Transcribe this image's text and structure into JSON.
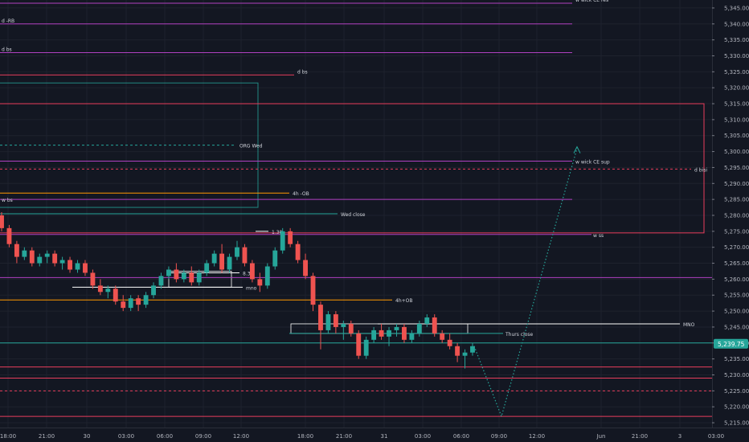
{
  "chart_data": {
    "type": "candlestick",
    "y_axis": {
      "ticks": [
        "5,345.00",
        "5,340.00",
        "5,335.00",
        "5,330.00",
        "5,325.00",
        "5,320.00",
        "5,315.00",
        "5,310.00",
        "5,305.00",
        "5,300.00",
        "5,295.00",
        "5,290.00",
        "5,285.00",
        "5,280.00",
        "5,275.00",
        "5,270.00",
        "5,265.00",
        "5,260.00",
        "5,255.00",
        "5,250.00",
        "5,245.00",
        "5,240.00",
        "5,235.00",
        "5,230.00",
        "5,225.00",
        "5,220.00",
        "5,215.00"
      ],
      "tick_values": [
        5345,
        5340,
        5335,
        5330,
        5325,
        5320,
        5315,
        5310,
        5305,
        5300,
        5295,
        5290,
        5285,
        5280,
        5275,
        5270,
        5265,
        5260,
        5255,
        5250,
        5245,
        5240,
        5235,
        5230,
        5225,
        5220,
        5215
      ],
      "range": [
        5213.5,
        5347.5
      ],
      "last_price_label": "5,239.75",
      "last_price": 5239.75,
      "last_price_color": "#26a69a"
    },
    "x_axis": {
      "labels": [
        "18:00",
        "21:00",
        "30",
        "03:00",
        "06:00",
        "09:00",
        "12:00",
        "18:00",
        "21:00",
        "31",
        "03:00",
        "06:00",
        "09:00",
        "12:00",
        "Jun",
        "21:00",
        "3",
        "03:00"
      ]
    },
    "levels": [
      {
        "label": "w wick CE res",
        "price": 5346.5,
        "color": "#b040c0",
        "style": "solid"
      },
      {
        "label": "d -RB",
        "price": 5340.0,
        "color": "#b040c0",
        "style": "solid"
      },
      {
        "label": "d bs",
        "price": 5331.0,
        "color": "#b040c0",
        "style": "solid"
      },
      {
        "label": "d bs",
        "price": 5324.0,
        "color": "#e83e5c",
        "style": "solid"
      },
      {
        "label": "ORG Wed",
        "price": 5302.0,
        "color": "#26a69a",
        "style": "dashed"
      },
      {
        "label": "w wick CE sup",
        "price": 5297.0,
        "color": "#b040c0",
        "style": "solid"
      },
      {
        "label": "d bisi",
        "price": 5294.5,
        "color": "#e83e5c",
        "style": "dashed"
      },
      {
        "label": "4h -OB",
        "price": 5287.0,
        "color": "#ff9800",
        "style": "solid"
      },
      {
        "label": "w bs",
        "price": 5285.0,
        "color": "#b040c0",
        "style": "solid"
      },
      {
        "label": "Wed close",
        "price": 5280.5,
        "color": "#26a69a",
        "style": "solid"
      },
      {
        "label": "1.30",
        "price": 5275.0,
        "color": "#ffffff",
        "style": "solid"
      },
      {
        "label": "w ss",
        "price": 5274.0,
        "color": "#b040c0",
        "style": "solid"
      },
      {
        "label": "8.30",
        "price": 5262.0,
        "color": "#ffffff",
        "style": "solid"
      },
      {
        "label": "",
        "price": 5260.5,
        "color": "#b040c0",
        "style": "solid"
      },
      {
        "label": "mno",
        "price": 5257.5,
        "color": "#ffffff",
        "style": "solid"
      },
      {
        "label": "4h+OB",
        "price": 5253.5,
        "color": "#ff9800",
        "style": "solid"
      },
      {
        "label": "MNO",
        "price": 5246.0,
        "color": "#ffffff",
        "style": "solid"
      },
      {
        "label": "Thurs close",
        "price": 5243.0,
        "color": "#26a69a",
        "style": "solid"
      },
      {
        "label": "",
        "price": 5240.0,
        "color": "#26a69a",
        "style": "solid"
      },
      {
        "label": "",
        "price": 5232.5,
        "color": "#e83e5c",
        "style": "solid"
      },
      {
        "label": "",
        "price": 5229.0,
        "color": "#e83e5c",
        "style": "solid"
      },
      {
        "label": "",
        "price": 5225.0,
        "color": "#e83e5c",
        "style": "dashed"
      },
      {
        "label": "",
        "price": 5217.0,
        "color": "#e83e5c",
        "style": "solid"
      }
    ],
    "candles": [
      [
        5280,
        5281,
        5275,
        5276
      ],
      [
        5276,
        5277,
        5270,
        5271
      ],
      [
        5271,
        5272,
        5265,
        5267
      ],
      [
        5267,
        5270,
        5266,
        5269
      ],
      [
        5269,
        5270,
        5264,
        5265
      ],
      [
        5265,
        5268,
        5264,
        5267
      ],
      [
        5267,
        5269,
        5265,
        5268
      ],
      [
        5268,
        5269,
        5264,
        5265
      ],
      [
        5265,
        5267,
        5263,
        5266
      ],
      [
        5266,
        5267,
        5262,
        5263
      ],
      [
        5263,
        5266,
        5262,
        5265
      ],
      [
        5265,
        5266,
        5261,
        5262
      ],
      [
        5262,
        5263,
        5257,
        5258
      ],
      [
        5258,
        5260,
        5255,
        5256
      ],
      [
        5256,
        5258,
        5254,
        5257
      ],
      [
        5257,
        5258,
        5252,
        5253
      ],
      [
        5253,
        5255,
        5250,
        5251
      ],
      [
        5251,
        5255,
        5250,
        5254
      ],
      [
        5254,
        5255,
        5250,
        5252
      ],
      [
        5252,
        5256,
        5251,
        5255
      ],
      [
        5255,
        5259,
        5254,
        5258
      ],
      [
        5258,
        5262,
        5257,
        5261
      ],
      [
        5261,
        5264,
        5260,
        5263
      ],
      [
        5263,
        5265,
        5259,
        5260
      ],
      [
        5260,
        5263,
        5259,
        5262
      ],
      [
        5262,
        5264,
        5258,
        5259
      ],
      [
        5259,
        5263,
        5258,
        5262
      ],
      [
        5262,
        5266,
        5261,
        5265
      ],
      [
        5265,
        5269,
        5264,
        5268
      ],
      [
        5268,
        5271,
        5262,
        5263
      ],
      [
        5263,
        5268,
        5262,
        5267
      ],
      [
        5267,
        5272,
        5266,
        5270
      ],
      [
        5270,
        5271,
        5264,
        5265
      ],
      [
        5265,
        5266,
        5259,
        5260
      ],
      [
        5260,
        5262,
        5256,
        5258
      ],
      [
        5258,
        5265,
        5257,
        5264
      ],
      [
        5264,
        5270,
        5263,
        5269
      ],
      [
        5269,
        5276,
        5268,
        5275
      ],
      [
        5275,
        5276,
        5270,
        5271
      ],
      [
        5271,
        5272,
        5265,
        5266
      ],
      [
        5266,
        5268,
        5260,
        5261
      ],
      [
        5261,
        5262,
        5250,
        5252
      ],
      [
        5252,
        5253,
        5238,
        5244
      ],
      [
        5244,
        5250,
        5243,
        5249
      ],
      [
        5249,
        5250,
        5243,
        5245
      ],
      [
        5245,
        5247,
        5241,
        5246
      ],
      [
        5246,
        5247,
        5242,
        5243
      ],
      [
        5243,
        5244,
        5235,
        5236
      ],
      [
        5236,
        5242,
        5235,
        5241
      ],
      [
        5241,
        5245,
        5240,
        5244
      ],
      [
        5244,
        5246,
        5241,
        5242
      ],
      [
        5242,
        5245,
        5239,
        5244
      ],
      [
        5244,
        5246,
        5242,
        5245
      ],
      [
        5245,
        5246,
        5240,
        5241
      ],
      [
        5241,
        5244,
        5240,
        5243
      ],
      [
        5243,
        5247,
        5242,
        5246
      ],
      [
        5246,
        5249,
        5245,
        5248
      ],
      [
        5248,
        5249,
        5242,
        5243
      ],
      [
        5243,
        5244,
        5240,
        5241
      ],
      [
        5241,
        5243,
        5238,
        5239
      ],
      [
        5239,
        5240,
        5234,
        5236
      ],
      [
        5236,
        5238,
        5232,
        5237
      ],
      [
        5237,
        5240,
        5236,
        5239
      ]
    ],
    "projection": {
      "color": "#26a69a",
      "style": "dotted",
      "points": [
        [
          5239,
          5239
        ],
        [
          5217,
          5217
        ],
        [
          5301,
          5301
        ]
      ]
    }
  }
}
